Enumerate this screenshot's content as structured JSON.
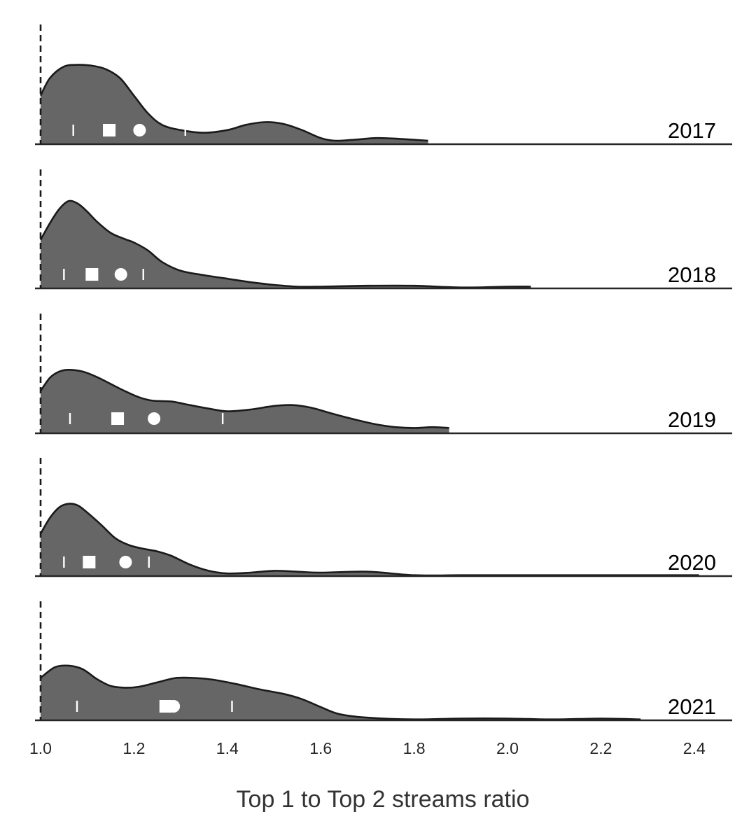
{
  "chart_data": {
    "type": "area",
    "subtype": "ridgeline-density",
    "xlabel": "Top 1 to Top 2 streams ratio",
    "xlim": [
      1.0,
      2.48
    ],
    "xticks": [
      1.0,
      1.2,
      1.4,
      1.6,
      1.8,
      2.0,
      2.2,
      2.4
    ],
    "xtick_labels": [
      "1.0",
      "1.2",
      "1.4",
      "1.6",
      "1.8",
      "2.0",
      "2.2",
      "2.4"
    ],
    "reference_line_x": 1.0,
    "fill_color": "#666666",
    "line_color": "#1a1a1a",
    "marker_color": "#ffffff",
    "markers_legend": {
      "square": "median",
      "circle": "mean",
      "ticks": "quartiles"
    },
    "series": [
      {
        "name": "2017",
        "max_x": 1.83,
        "density": [
          [
            1.0,
            0.55
          ],
          [
            1.02,
            0.75
          ],
          [
            1.05,
            0.88
          ],
          [
            1.08,
            0.9
          ],
          [
            1.11,
            0.89
          ],
          [
            1.14,
            0.85
          ],
          [
            1.17,
            0.75
          ],
          [
            1.2,
            0.55
          ],
          [
            1.23,
            0.35
          ],
          [
            1.26,
            0.22
          ],
          [
            1.3,
            0.16
          ],
          [
            1.35,
            0.13
          ],
          [
            1.4,
            0.16
          ],
          [
            1.44,
            0.22
          ],
          [
            1.48,
            0.25
          ],
          [
            1.52,
            0.23
          ],
          [
            1.56,
            0.16
          ],
          [
            1.6,
            0.07
          ],
          [
            1.63,
            0.04
          ],
          [
            1.67,
            0.05
          ],
          [
            1.72,
            0.07
          ],
          [
            1.77,
            0.06
          ],
          [
            1.83,
            0.04
          ]
        ],
        "q1": 1.07,
        "median": 1.147,
        "mean": 1.212,
        "q3": 1.31
      },
      {
        "name": "2018",
        "max_x": 2.05,
        "density": [
          [
            1.0,
            0.55
          ],
          [
            1.02,
            0.74
          ],
          [
            1.04,
            0.9
          ],
          [
            1.06,
            0.99
          ],
          [
            1.08,
            0.96
          ],
          [
            1.1,
            0.87
          ],
          [
            1.12,
            0.76
          ],
          [
            1.15,
            0.63
          ],
          [
            1.18,
            0.56
          ],
          [
            1.2,
            0.52
          ],
          [
            1.23,
            0.43
          ],
          [
            1.26,
            0.3
          ],
          [
            1.3,
            0.2
          ],
          [
            1.35,
            0.15
          ],
          [
            1.4,
            0.11
          ],
          [
            1.45,
            0.07
          ],
          [
            1.5,
            0.04
          ],
          [
            1.55,
            0.02
          ],
          [
            1.6,
            0.02
          ],
          [
            1.7,
            0.03
          ],
          [
            1.8,
            0.03
          ],
          [
            1.9,
            0.01
          ],
          [
            2.0,
            0.02
          ],
          [
            2.05,
            0.02
          ]
        ],
        "q1": 1.05,
        "median": 1.11,
        "mean": 1.172,
        "q3": 1.22
      },
      {
        "name": "2019",
        "max_x": 1.875,
        "density": [
          [
            1.0,
            0.48
          ],
          [
            1.02,
            0.63
          ],
          [
            1.04,
            0.7
          ],
          [
            1.06,
            0.72
          ],
          [
            1.09,
            0.7
          ],
          [
            1.12,
            0.64
          ],
          [
            1.15,
            0.56
          ],
          [
            1.18,
            0.48
          ],
          [
            1.21,
            0.41
          ],
          [
            1.24,
            0.37
          ],
          [
            1.28,
            0.36
          ],
          [
            1.32,
            0.32
          ],
          [
            1.36,
            0.28
          ],
          [
            1.4,
            0.25
          ],
          [
            1.45,
            0.27
          ],
          [
            1.5,
            0.31
          ],
          [
            1.54,
            0.32
          ],
          [
            1.58,
            0.29
          ],
          [
            1.62,
            0.23
          ],
          [
            1.67,
            0.16
          ],
          [
            1.72,
            0.1
          ],
          [
            1.76,
            0.07
          ],
          [
            1.8,
            0.06
          ],
          [
            1.84,
            0.07
          ],
          [
            1.875,
            0.06
          ]
        ],
        "q1": 1.063,
        "median": 1.165,
        "mean": 1.243,
        "q3": 1.39
      },
      {
        "name": "2020",
        "max_x": 2.41,
        "density": [
          [
            1.0,
            0.48
          ],
          [
            1.02,
            0.66
          ],
          [
            1.04,
            0.78
          ],
          [
            1.06,
            0.82
          ],
          [
            1.08,
            0.8
          ],
          [
            1.1,
            0.72
          ],
          [
            1.13,
            0.58
          ],
          [
            1.16,
            0.43
          ],
          [
            1.19,
            0.35
          ],
          [
            1.22,
            0.31
          ],
          [
            1.25,
            0.28
          ],
          [
            1.28,
            0.23
          ],
          [
            1.32,
            0.13
          ],
          [
            1.36,
            0.06
          ],
          [
            1.4,
            0.03
          ],
          [
            1.45,
            0.04
          ],
          [
            1.5,
            0.06
          ],
          [
            1.55,
            0.05
          ],
          [
            1.6,
            0.04
          ],
          [
            1.7,
            0.05
          ],
          [
            1.8,
            0.01
          ],
          [
            1.9,
            0.01
          ],
          [
            2.0,
            0.01
          ],
          [
            2.1,
            0.01
          ],
          [
            2.2,
            0.01
          ],
          [
            2.3,
            0.01
          ],
          [
            2.41,
            0.01
          ]
        ],
        "q1": 1.05,
        "median": 1.104,
        "mean": 1.182,
        "q3": 1.232
      },
      {
        "name": "2021",
        "max_x": 2.285,
        "density": [
          [
            1.0,
            0.48
          ],
          [
            1.03,
            0.6
          ],
          [
            1.06,
            0.62
          ],
          [
            1.09,
            0.58
          ],
          [
            1.12,
            0.47
          ],
          [
            1.15,
            0.39
          ],
          [
            1.18,
            0.37
          ],
          [
            1.21,
            0.38
          ],
          [
            1.25,
            0.43
          ],
          [
            1.29,
            0.48
          ],
          [
            1.33,
            0.48
          ],
          [
            1.37,
            0.46
          ],
          [
            1.42,
            0.41
          ],
          [
            1.47,
            0.35
          ],
          [
            1.52,
            0.3
          ],
          [
            1.56,
            0.24
          ],
          [
            1.6,
            0.15
          ],
          [
            1.64,
            0.07
          ],
          [
            1.7,
            0.03
          ],
          [
            1.8,
            0.01
          ],
          [
            1.9,
            0.02
          ],
          [
            2.0,
            0.02
          ],
          [
            2.1,
            0.01
          ],
          [
            2.2,
            0.02
          ],
          [
            2.285,
            0.01
          ]
        ],
        "q1": 1.078,
        "median": 1.268,
        "mean": 1.285,
        "q3": 1.41
      }
    ]
  }
}
